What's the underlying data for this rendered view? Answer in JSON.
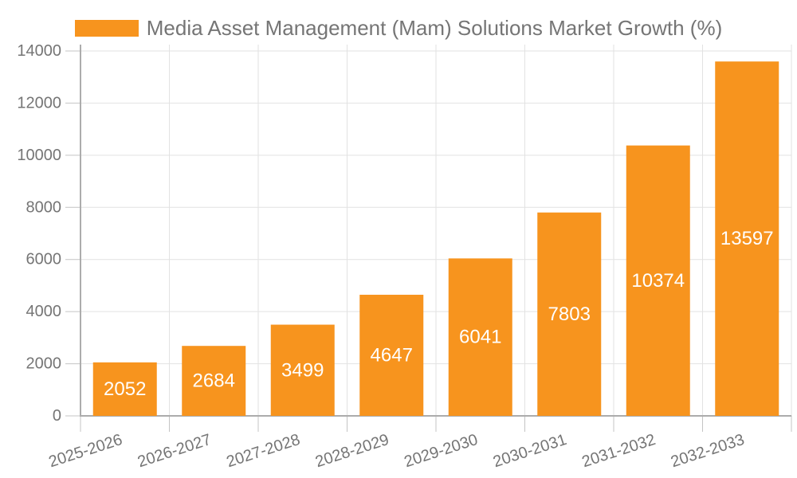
{
  "legend": {
    "label": "Media Asset Management (Mam) Solutions Market Growth (%)"
  },
  "chart_data": {
    "type": "bar",
    "title": "Media Asset Management (Mam) Solutions Market Growth (%)",
    "categories": [
      "2025-2026",
      "2026-2027",
      "2027-2028",
      "2028-2029",
      "2029-2030",
      "2030-2031",
      "2031-2032",
      "2032-2033"
    ],
    "values": [
      2052,
      2684,
      3499,
      4647,
      6041,
      7803,
      10374,
      13597
    ],
    "series": [
      {
        "name": "Media Asset Management (Mam) Solutions Market Growth (%)",
        "values": [
          2052,
          2684,
          3499,
          4647,
          6041,
          7803,
          10374,
          13597
        ]
      }
    ],
    "xlabel": "",
    "ylabel": "",
    "ylim": [
      0,
      14000
    ],
    "yticks": [
      0,
      2000,
      4000,
      6000,
      8000,
      10000,
      12000,
      14000
    ],
    "grid": true,
    "value_labels": "inside-center",
    "x_tick_rotation_deg": -18,
    "legend_position": "top-center",
    "colors": {
      "bar": "#F7941E",
      "value_label": "#FFFFFF",
      "axis_text": "#757575",
      "legend_text": "#757575",
      "gridline": "#E2E2E2",
      "axis_line": "#ACACAC",
      "tick": "#C4C4C4",
      "background": "#FFFFFF"
    }
  }
}
